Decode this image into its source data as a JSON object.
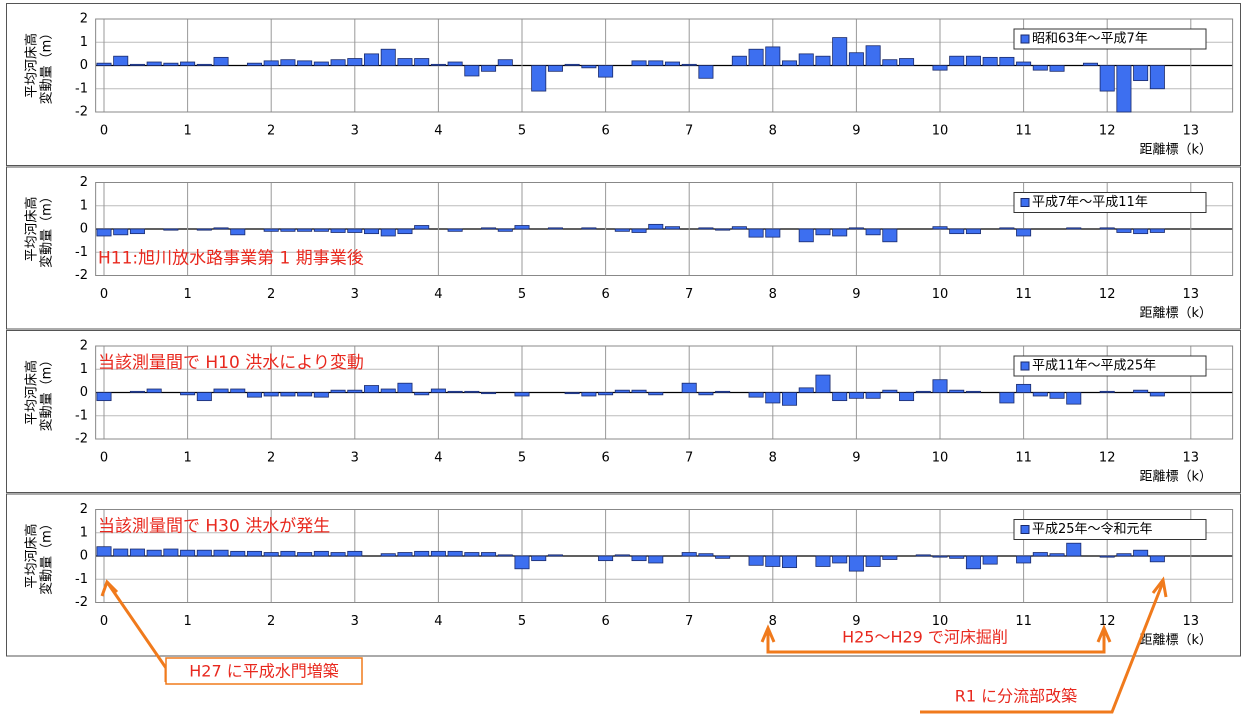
{
  "chart_data": [
    {
      "type": "bar",
      "ylabel": [
        "平均河床高",
        "変動量（m）"
      ],
      "xlabel": "距離標（k）",
      "x": [
        0,
        0.2,
        0.4,
        0.6,
        0.8,
        1,
        1.2,
        1.4,
        1.6,
        1.8,
        2,
        2.2,
        2.4,
        2.6,
        2.8,
        3,
        3.2,
        3.4,
        3.6,
        3.8,
        4,
        4.2,
        4.4,
        4.6,
        4.8,
        5,
        5.2,
        5.4,
        5.6,
        5.8,
        6,
        6.2,
        6.4,
        6.6,
        6.8,
        7,
        7.2,
        7.4,
        7.6,
        7.8,
        8,
        8.2,
        8.4,
        8.6,
        8.8,
        9,
        9.2,
        9.4,
        9.6,
        9.8,
        10,
        10.2,
        10.4,
        10.6,
        10.8,
        11,
        11.2,
        11.4,
        11.6,
        11.8,
        12,
        12.2,
        12.4,
        12.6
      ],
      "series": [
        {
          "name": "昭和63年～平成7年",
          "color": "#3d6ff0",
          "values": [
            0.1,
            0.4,
            0.05,
            0.15,
            0.1,
            0.15,
            0.05,
            0.35,
            0,
            0.1,
            0.2,
            0.25,
            0.2,
            0.15,
            0.25,
            0.3,
            0.5,
            0.7,
            0.3,
            0.3,
            0.05,
            0.15,
            -0.45,
            -0.25,
            0.25,
            0,
            -1.1,
            -0.25,
            0.05,
            -0.1,
            -0.5,
            0,
            0.2,
            0.2,
            0.15,
            0.05,
            -0.55,
            0,
            0.4,
            0.7,
            0.8,
            0.2,
            0.5,
            0.4,
            1.2,
            0.55,
            0.85,
            0.25,
            0.3,
            0,
            -0.2,
            0.4,
            0.4,
            0.35,
            0.35,
            0.15,
            -0.2,
            -0.25,
            0,
            0.1,
            -1.1,
            -2,
            -0.65,
            -1
          ]
        }
      ],
      "xlim": [
        -0.1,
        13.5
      ],
      "xticks": [
        0,
        1,
        2,
        3,
        4,
        5,
        6,
        7,
        8,
        9,
        10,
        11,
        12,
        13
      ],
      "ylim": [
        -2,
        2
      ],
      "yticks": [
        2,
        1,
        0,
        -1,
        -2
      ],
      "grid": true
    },
    {
      "type": "bar",
      "ylabel": [
        "平均河床高",
        "変動量（m）"
      ],
      "xlabel": "距離標（k）",
      "annotation": "H11:旭川放水路事業第 1 期事業後",
      "x": [
        0,
        0.2,
        0.4,
        0.6,
        0.8,
        1,
        1.2,
        1.4,
        1.6,
        1.8,
        2,
        2.2,
        2.4,
        2.6,
        2.8,
        3,
        3.2,
        3.4,
        3.6,
        3.8,
        4,
        4.2,
        4.4,
        4.6,
        4.8,
        5,
        5.2,
        5.4,
        5.6,
        5.8,
        6,
        6.2,
        6.4,
        6.6,
        6.8,
        7,
        7.2,
        7.4,
        7.6,
        7.8,
        8,
        8.2,
        8.4,
        8.6,
        8.8,
        9,
        9.2,
        9.4,
        9.6,
        9.8,
        10,
        10.2,
        10.4,
        10.6,
        10.8,
        11,
        11.2,
        11.4,
        11.6,
        11.8,
        12,
        12.2,
        12.4,
        12.6
      ],
      "series": [
        {
          "name": "平成7年～平成11年",
          "color": "#3d6ff0",
          "values": [
            -0.3,
            -0.25,
            -0.2,
            0,
            -0.05,
            0,
            -0.05,
            0.05,
            -0.25,
            0,
            -0.1,
            -0.1,
            -0.1,
            -0.1,
            -0.15,
            -0.15,
            -0.2,
            -0.3,
            -0.2,
            0.15,
            0,
            -0.1,
            0,
            0.05,
            -0.1,
            0.15,
            0,
            0.05,
            0,
            0.05,
            0,
            -0.1,
            -0.15,
            0.2,
            0.1,
            0,
            0.05,
            -0.05,
            0.1,
            -0.35,
            -0.35,
            0,
            -0.55,
            -0.25,
            -0.3,
            0.05,
            -0.25,
            -0.55,
            0,
            0,
            0.1,
            -0.2,
            -0.2,
            0,
            0.05,
            -0.3,
            0,
            0,
            0.05,
            0,
            0.05,
            -0.15,
            -0.2,
            -0.15
          ]
        }
      ],
      "xlim": [
        -0.1,
        13.5
      ],
      "xticks": [
        0,
        1,
        2,
        3,
        4,
        5,
        6,
        7,
        8,
        9,
        10,
        11,
        12,
        13
      ],
      "ylim": [
        -2,
        2
      ],
      "yticks": [
        2,
        1,
        0,
        -1,
        -2
      ],
      "grid": true
    },
    {
      "type": "bar",
      "ylabel": [
        "平均河床高",
        "変動量（m）"
      ],
      "xlabel": "距離標（k）",
      "annotation": "当該測量間で H10 洪水により変動",
      "x": [
        0,
        0.2,
        0.4,
        0.6,
        0.8,
        1,
        1.2,
        1.4,
        1.6,
        1.8,
        2,
        2.2,
        2.4,
        2.6,
        2.8,
        3,
        3.2,
        3.4,
        3.6,
        3.8,
        4,
        4.2,
        4.4,
        4.6,
        4.8,
        5,
        5.2,
        5.4,
        5.6,
        5.8,
        6,
        6.2,
        6.4,
        6.6,
        6.8,
        7,
        7.2,
        7.4,
        7.6,
        7.8,
        8,
        8.2,
        8.4,
        8.6,
        8.8,
        9,
        9.2,
        9.4,
        9.6,
        9.8,
        10,
        10.2,
        10.4,
        10.6,
        10.8,
        11,
        11.2,
        11.4,
        11.6,
        11.8,
        12,
        12.2,
        12.4,
        12.6
      ],
      "series": [
        {
          "name": "平成11年～平成25年",
          "color": "#3d6ff0",
          "values": [
            -0.35,
            0,
            0.05,
            0.15,
            0,
            -0.1,
            -0.35,
            0.15,
            0.15,
            -0.2,
            -0.15,
            -0.15,
            -0.15,
            -0.2,
            0.1,
            0.1,
            0.3,
            0.15,
            0.4,
            -0.1,
            0.15,
            0.05,
            0.05,
            -0.05,
            0,
            -0.15,
            0,
            0,
            -0.05,
            -0.15,
            -0.1,
            0.1,
            0.1,
            -0.1,
            0,
            0.4,
            -0.1,
            0.05,
            0,
            -0.2,
            -0.45,
            -0.55,
            0.2,
            0.75,
            -0.35,
            -0.25,
            -0.25,
            0.1,
            -0.35,
            0.05,
            0.55,
            0.1,
            0.05,
            0,
            -0.45,
            0.35,
            -0.15,
            -0.25,
            -0.5,
            0,
            0.05,
            0,
            0.1,
            -0.15
          ]
        }
      ],
      "xlim": [
        -0.1,
        13.5
      ],
      "xticks": [
        0,
        1,
        2,
        3,
        4,
        5,
        6,
        7,
        8,
        9,
        10,
        11,
        12,
        13
      ],
      "ylim": [
        -2,
        2
      ],
      "yticks": [
        2,
        1,
        0,
        -1,
        -2
      ],
      "grid": true
    },
    {
      "type": "bar",
      "ylabel": [
        "平均河床高",
        "変動量（m）"
      ],
      "xlabel": "距離標（k）",
      "annotation": "当該測量間で H30 洪水が発生",
      "x": [
        0,
        0.2,
        0.4,
        0.6,
        0.8,
        1,
        1.2,
        1.4,
        1.6,
        1.8,
        2,
        2.2,
        2.4,
        2.6,
        2.8,
        3,
        3.2,
        3.4,
        3.6,
        3.8,
        4,
        4.2,
        4.4,
        4.6,
        4.8,
        5,
        5.2,
        5.4,
        5.6,
        5.8,
        6,
        6.2,
        6.4,
        6.6,
        6.8,
        7,
        7.2,
        7.4,
        7.6,
        7.8,
        8,
        8.2,
        8.4,
        8.6,
        8.8,
        9,
        9.2,
        9.4,
        9.6,
        9.8,
        10,
        10.2,
        10.4,
        10.6,
        10.8,
        11,
        11.2,
        11.4,
        11.6,
        11.8,
        12,
        12.2,
        12.4,
        12.6
      ],
      "series": [
        {
          "name": "平成25年～令和元年",
          "color": "#3d6ff0",
          "values": [
            0.4,
            0.3,
            0.3,
            0.25,
            0.3,
            0.25,
            0.25,
            0.25,
            0.2,
            0.2,
            0.15,
            0.2,
            0.15,
            0.2,
            0.15,
            0.2,
            0,
            0.1,
            0.15,
            0.2,
            0.2,
            0.2,
            0.15,
            0.15,
            0.05,
            -0.55,
            -0.2,
            0.05,
            0,
            0,
            -0.2,
            0.05,
            -0.2,
            -0.3,
            0,
            0.15,
            0.1,
            -0.1,
            0,
            -0.4,
            -0.45,
            -0.5,
            0,
            -0.45,
            -0.3,
            -0.65,
            -0.45,
            -0.15,
            0,
            0.05,
            -0.05,
            -0.1,
            -0.55,
            -0.35,
            0,
            -0.3,
            0.15,
            0.1,
            0.55,
            0,
            -0.05,
            0.1,
            0.25,
            -0.25
          ]
        }
      ],
      "xlim": [
        -0.1,
        13.5
      ],
      "xticks": [
        0,
        1,
        2,
        3,
        4,
        5,
        6,
        7,
        8,
        9,
        10,
        11,
        12,
        13
      ],
      "ylim": [
        -2,
        2
      ],
      "yticks": [
        2,
        1,
        0,
        -1,
        -2
      ],
      "grid": true
    }
  ],
  "annotations": [
    "H27 に平成水門増築",
    "H25～H29 で河床掘削",
    "R1 に分流部改築"
  ]
}
